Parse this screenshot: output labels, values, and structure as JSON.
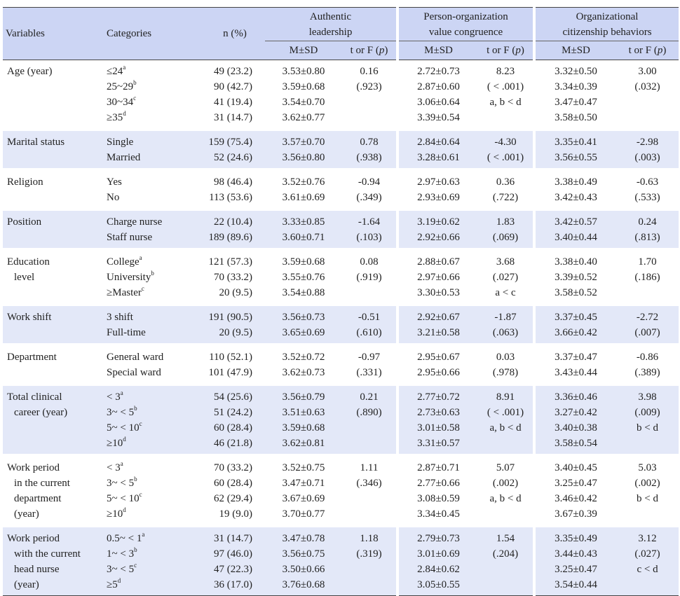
{
  "header": {
    "variables": "Variables",
    "categories": "Categories",
    "n_pct": "n (%)",
    "groups": [
      {
        "line1": "Authentic",
        "line2": "leadership"
      },
      {
        "line1": "Person-organization",
        "line2": "value congruence"
      },
      {
        "line1": "Organizational",
        "line2": "citizenship behaviors"
      }
    ],
    "msd": "M±SD",
    "test_prefix": "t or F (",
    "test_p": "p",
    "test_suffix": ")"
  },
  "rows": [
    {
      "variable": [
        "Age (year)"
      ],
      "categories": [
        [
          "≤24",
          "a"
        ],
        [
          "25~29",
          "b"
        ],
        [
          "30~34",
          "c"
        ],
        [
          "≥35",
          "d"
        ]
      ],
      "n": [
        "49 (23.2)",
        "90 (42.7)",
        "41 (19.4)",
        "31 (14.7)"
      ],
      "al_msd": [
        "3.53±0.80",
        "3.59±0.68",
        "3.54±0.70",
        "3.62±0.77"
      ],
      "al_t": [
        "0.16",
        "(.923)"
      ],
      "pv_msd": [
        "2.72±0.73",
        "2.87±0.60",
        "3.06±0.64",
        "3.39±0.54"
      ],
      "pv_t": [
        "8.23",
        "( < .001)",
        "a, b < d"
      ],
      "oc_msd": [
        "3.32±0.50",
        "3.34±0.39",
        "3.47±0.47",
        "3.58±0.50"
      ],
      "oc_t": [
        "3.00",
        "(.032)"
      ]
    },
    {
      "variable": [
        "Marital status"
      ],
      "categories": [
        [
          "Single",
          ""
        ],
        [
          "Married",
          ""
        ]
      ],
      "n": [
        "159 (75.4)",
        "52 (24.6)"
      ],
      "al_msd": [
        "3.57±0.70",
        "3.56±0.80"
      ],
      "al_t": [
        "0.78",
        "(.938)"
      ],
      "pv_msd": [
        "2.84±0.64",
        "3.28±0.61"
      ],
      "pv_t": [
        "-4.30",
        "( < .001)"
      ],
      "oc_msd": [
        "3.35±0.41",
        "3.56±0.55"
      ],
      "oc_t": [
        "-2.98",
        "(.003)"
      ]
    },
    {
      "variable": [
        "Religion"
      ],
      "categories": [
        [
          "Yes",
          ""
        ],
        [
          "No",
          ""
        ]
      ],
      "n": [
        "98 (46.4)",
        "113 (53.6)"
      ],
      "al_msd": [
        "3.52±0.76",
        "3.61±0.69"
      ],
      "al_t": [
        "-0.94",
        "(.349)"
      ],
      "pv_msd": [
        "2.97±0.63",
        "2.93±0.69"
      ],
      "pv_t": [
        "0.36",
        "(.722)"
      ],
      "oc_msd": [
        "3.38±0.49",
        "3.42±0.43"
      ],
      "oc_t": [
        "-0.63",
        "(.533)"
      ]
    },
    {
      "variable": [
        "Position"
      ],
      "categories": [
        [
          "Charge nurse",
          ""
        ],
        [
          "Staff nurse",
          ""
        ]
      ],
      "n": [
        "22 (10.4)",
        "189 (89.6)"
      ],
      "al_msd": [
        "3.33±0.85",
        "3.60±0.71"
      ],
      "al_t": [
        "-1.64",
        "(.103)"
      ],
      "pv_msd": [
        "3.19±0.62",
        "2.92±0.66"
      ],
      "pv_t": [
        "1.83",
        "(.069)"
      ],
      "oc_msd": [
        "3.42±0.57",
        "3.40±0.44"
      ],
      "oc_t": [
        "0.24",
        "(.813)"
      ]
    },
    {
      "variable": [
        "Education",
        "level"
      ],
      "categories": [
        [
          "College",
          "a"
        ],
        [
          "University",
          "b"
        ],
        [
          "≥Master",
          "c"
        ]
      ],
      "n": [
        "121 (57.3)",
        "70 (33.2)",
        "20 (9.5)"
      ],
      "al_msd": [
        "3.59±0.68",
        "3.55±0.76",
        "3.54±0.88"
      ],
      "al_t": [
        "0.08",
        "(.919)"
      ],
      "pv_msd": [
        "2.88±0.67",
        "2.97±0.66",
        "3.30±0.53"
      ],
      "pv_t": [
        "3.68",
        "(.027)",
        "a < c"
      ],
      "oc_msd": [
        "3.38±0.40",
        "3.39±0.52",
        "3.58±0.52"
      ],
      "oc_t": [
        "1.70",
        "(.186)"
      ]
    },
    {
      "variable": [
        "Work shift"
      ],
      "categories": [
        [
          "3 shift",
          ""
        ],
        [
          "Full-time",
          ""
        ]
      ],
      "n": [
        "191 (90.5)",
        "20 (9.5)"
      ],
      "al_msd": [
        "3.56±0.73",
        "3.65±0.69"
      ],
      "al_t": [
        "-0.51",
        "(.610)"
      ],
      "pv_msd": [
        "2.92±0.67",
        "3.21±0.58"
      ],
      "pv_t": [
        "-1.87",
        "(.063)"
      ],
      "oc_msd": [
        "3.37±0.45",
        "3.66±0.42"
      ],
      "oc_t": [
        "-2.72",
        "(.007)"
      ]
    },
    {
      "variable": [
        "Department"
      ],
      "categories": [
        [
          "General ward",
          ""
        ],
        [
          "Special ward",
          ""
        ]
      ],
      "n": [
        "110 (52.1)",
        "101 (47.9)"
      ],
      "al_msd": [
        "3.52±0.72",
        "3.62±0.73"
      ],
      "al_t": [
        "-0.97",
        "(.331)"
      ],
      "pv_msd": [
        "2.95±0.67",
        "2.95±0.66"
      ],
      "pv_t": [
        "0.03",
        "(.978)"
      ],
      "oc_msd": [
        "3.37±0.47",
        "3.43±0.44"
      ],
      "oc_t": [
        "-0.86",
        "(.389)"
      ]
    },
    {
      "variable": [
        "Total clinical",
        "career (year)"
      ],
      "categories": [
        [
          "< 3",
          "a"
        ],
        [
          "3~ < 5",
          "b"
        ],
        [
          "5~ < 10",
          "c"
        ],
        [
          "≥10",
          "d"
        ]
      ],
      "n": [
        "54 (25.6)",
        "51 (24.2)",
        "60 (28.4)",
        "46 (21.8)"
      ],
      "al_msd": [
        "3.56±0.79",
        "3.51±0.63",
        "3.59±0.68",
        "3.62±0.81"
      ],
      "al_t": [
        "0.21",
        "(.890)"
      ],
      "pv_msd": [
        "2.77±0.72",
        "2.73±0.63",
        "3.01±0.58",
        "3.31±0.57"
      ],
      "pv_t": [
        "8.91",
        "( < .001)",
        "a, b < d"
      ],
      "oc_msd": [
        "3.36±0.46",
        "3.27±0.42",
        "3.40±0.38",
        "3.58±0.54"
      ],
      "oc_t": [
        "3.98",
        "(.009)",
        "b < d"
      ]
    },
    {
      "variable": [
        "Work period",
        "in the current",
        "department",
        "(year)"
      ],
      "categories": [
        [
          "< 3",
          "a"
        ],
        [
          "3~ < 5",
          "b"
        ],
        [
          "5~ < 10",
          "c"
        ],
        [
          "≥10",
          "d"
        ]
      ],
      "n": [
        "70 (33.2)",
        "60 (28.4)",
        "62 (29.4)",
        "19 (9.0)"
      ],
      "al_msd": [
        "3.52±0.75",
        "3.47±0.71",
        "3.67±0.69",
        "3.70±0.77"
      ],
      "al_t": [
        "1.11",
        "(.346)"
      ],
      "pv_msd": [
        "2.87±0.71",
        "2.77±0.66",
        "3.08±0.59",
        "3.34±0.45"
      ],
      "pv_t": [
        "5.07",
        "(.002)",
        "a, b < d"
      ],
      "oc_msd": [
        "3.40±0.45",
        "3.25±0.47",
        "3.46±0.42",
        "3.67±0.39"
      ],
      "oc_t": [
        "5.03",
        "(.002)",
        "b < d"
      ]
    },
    {
      "variable": [
        "Work period",
        "with the current",
        "head nurse",
        "(year)"
      ],
      "categories": [
        [
          "0.5~ < 1",
          "a"
        ],
        [
          "1~ < 3",
          "b"
        ],
        [
          "3~ < 5",
          "c"
        ],
        [
          "≥5",
          "d"
        ]
      ],
      "n": [
        "31 (14.7)",
        "97 (46.0)",
        "47 (22.3)",
        "36 (17.0)"
      ],
      "al_msd": [
        "3.47±0.78",
        "3.56±0.75",
        "3.50±0.66",
        "3.76±0.68"
      ],
      "al_t": [
        "1.18",
        "(.319)"
      ],
      "pv_msd": [
        "2.79±0.73",
        "3.01±0.69",
        "2.84±0.62",
        "3.05±0.55"
      ],
      "pv_t": [
        "1.54",
        "(.204)"
      ],
      "oc_msd": [
        "3.35±0.49",
        "3.44±0.43",
        "3.25±0.47",
        "3.54±0.44"
      ],
      "oc_t": [
        "3.12",
        "(.027)",
        "c < d"
      ]
    }
  ]
}
